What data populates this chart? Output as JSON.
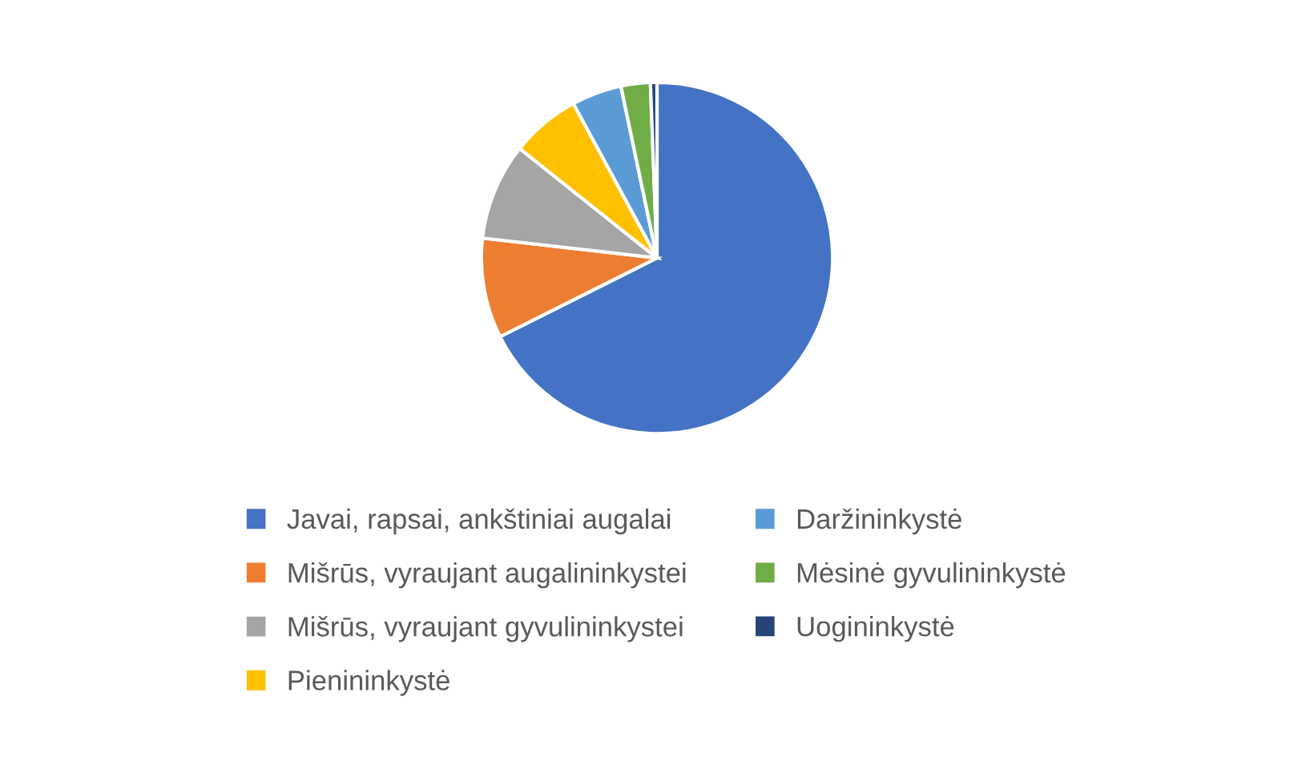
{
  "chart_data": {
    "type": "pie",
    "categories": [
      "Javai, rapsai, ankštiniai augalai",
      "Mišrūs, vyraujant augalininkystei",
      "Mišrūs, vyraujant gyvulininkystei",
      "Pienininkystė",
      "Daržininkystė",
      "Mėsinė gyvulininkystė",
      "Uogininkystė"
    ],
    "values": [
      67.6,
      9.2,
      8.9,
      6.4,
      4.6,
      2.7,
      0.6
    ],
    "colors": [
      "#4472c4",
      "#ed7d31",
      "#a5a5a5",
      "#ffc000",
      "#5b9bd5",
      "#70ad47",
      "#264478"
    ],
    "legend": "bottom"
  }
}
